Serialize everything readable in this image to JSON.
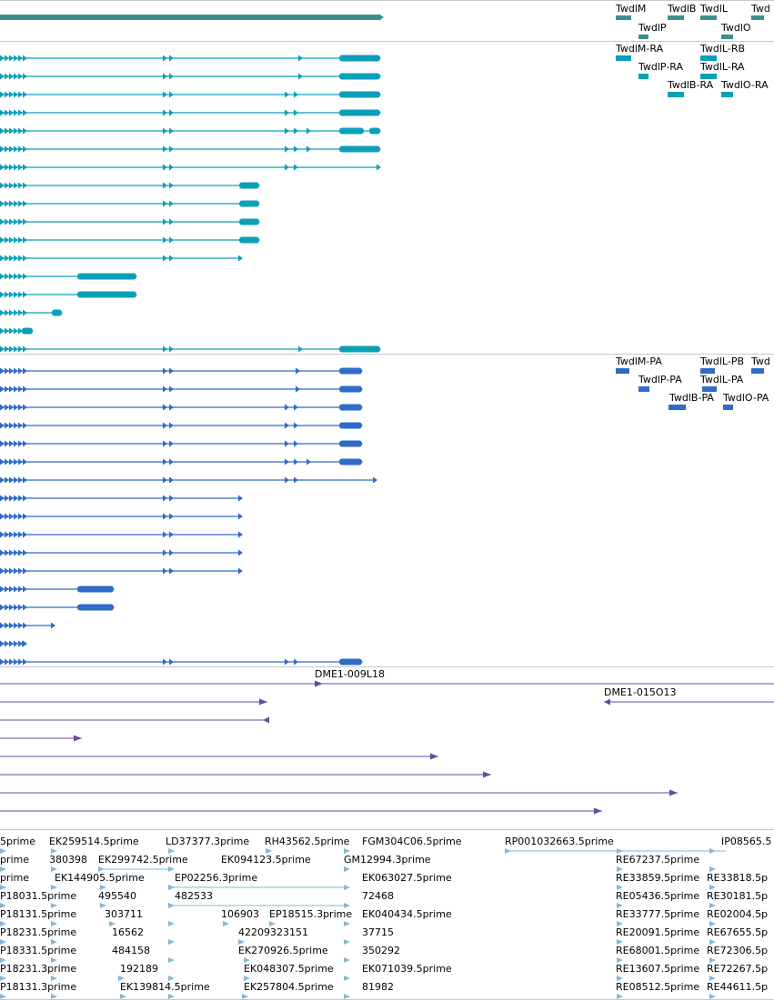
{
  "colors": {
    "gene": "#3b8f8f",
    "mrna": "#0c9fb8",
    "protein": "#2f6bc9",
    "clone": "#6a4aa0",
    "est": "#84b8d8",
    "divider": "#c8c8c8",
    "background": "#ffffff"
  },
  "tracks": {
    "genes": {
      "labels": [
        {
          "id": "g-twdlm",
          "text": "TwdlM"
        },
        {
          "id": "g-twdlb",
          "text": "TwdlB"
        },
        {
          "id": "g-twdll",
          "text": "TwdlL"
        },
        {
          "id": "g-twd-edge",
          "text": "Twd"
        },
        {
          "id": "g-twdlp",
          "text": "TwdlP"
        },
        {
          "id": "g-twdlo",
          "text": "TwdlO"
        }
      ]
    },
    "transcripts": {
      "labels": [
        {
          "id": "t-twdlm-ra",
          "text": "TwdlM-RA"
        },
        {
          "id": "t-twdll-rb",
          "text": "TwdlL-RB"
        },
        {
          "id": "t-twdlp-ra",
          "text": "TwdlP-RA"
        },
        {
          "id": "t-twdll-ra",
          "text": "TwdlL-RA"
        },
        {
          "id": "t-twdlb-ra",
          "text": "TwdlB-RA"
        },
        {
          "id": "t-twdlo-ra",
          "text": "TwdlO-RA"
        }
      ]
    },
    "proteins": {
      "labels": [
        {
          "id": "p-twdlm-pa",
          "text": "TwdlM-PA"
        },
        {
          "id": "p-twdll-pb",
          "text": "TwdlL-PB"
        },
        {
          "id": "p-twd-edge",
          "text": "Twd"
        },
        {
          "id": "p-twdlp-pa",
          "text": "TwdlP-PA"
        },
        {
          "id": "p-twdll-pa",
          "text": "TwdlL-PA"
        },
        {
          "id": "p-twdlb-pa",
          "text": "TwdlB-PA"
        },
        {
          "id": "p-twdlo-pa",
          "text": "TwdlO-PA"
        }
      ]
    },
    "clones": {
      "labels": [
        {
          "id": "c-009l18",
          "text": "DME1-009L18"
        },
        {
          "id": "c-015o13",
          "text": "DME1-015O13"
        }
      ]
    },
    "ests": {
      "labels": [
        {
          "id": "e-r1a",
          "text": "5prime"
        },
        {
          "id": "e-r1b",
          "text": "EK259514.5prime"
        },
        {
          "id": "e-r1c",
          "text": "LD37377.3prime"
        },
        {
          "id": "e-r1d",
          "text": "RH43562.5prime"
        },
        {
          "id": "e-r1e",
          "text": "FGM304C06.5prime"
        },
        {
          "id": "e-r1f",
          "text": "RP001032663.5prime"
        },
        {
          "id": "e-r1g",
          "text": "IP08565.5"
        },
        {
          "id": "e-r2a",
          "text": "prime"
        },
        {
          "id": "e-r2b",
          "text": "380398"
        },
        {
          "id": "e-r2c",
          "text": "EK299742.5prime"
        },
        {
          "id": "e-r2d",
          "text": "EK094123.5prime"
        },
        {
          "id": "e-r2e",
          "text": "GM12994.3prime"
        },
        {
          "id": "e-r2f",
          "text": "RE67237.5prime"
        },
        {
          "id": "e-r3a",
          "text": "prime"
        },
        {
          "id": "e-r3b",
          "text": "EK144905.5prime"
        },
        {
          "id": "e-r3c",
          "text": "EP02256.3prime"
        },
        {
          "id": "e-r3d",
          "text": "EK063027.5prime"
        },
        {
          "id": "e-r3e",
          "text": "RE33859.5prime"
        },
        {
          "id": "e-r3f",
          "text": "RE33818.5p"
        },
        {
          "id": "e-r4a",
          "text": "P18031.5prime"
        },
        {
          "id": "e-r4b",
          "text": "495540"
        },
        {
          "id": "e-r4c",
          "text": "482533"
        },
        {
          "id": "e-r4d",
          "text": "72468"
        },
        {
          "id": "e-r4e",
          "text": "RE05436.5prime"
        },
        {
          "id": "e-r4f",
          "text": "RE30181.5p"
        },
        {
          "id": "e-r5a",
          "text": "P18131.5prime"
        },
        {
          "id": "e-r5b",
          "text": "303711"
        },
        {
          "id": "e-r5c",
          "text": "106903"
        },
        {
          "id": "e-r5d",
          "text": "EP18515.3prime"
        },
        {
          "id": "e-r5e",
          "text": "EK040434.5prime"
        },
        {
          "id": "e-r5f",
          "text": "RE33777.5prime"
        },
        {
          "id": "e-r5g",
          "text": "RE02004.5p"
        },
        {
          "id": "e-r6a",
          "text": "P18231.5prime"
        },
        {
          "id": "e-r6b",
          "text": "16562"
        },
        {
          "id": "e-r6c",
          "text": "42209323151"
        },
        {
          "id": "e-r6d",
          "text": "37715"
        },
        {
          "id": "e-r6e",
          "text": "RE20091.5prime"
        },
        {
          "id": "e-r6f",
          "text": "RE67655.5p"
        },
        {
          "id": "e-r7a",
          "text": "P18331.5prime"
        },
        {
          "id": "e-r7b",
          "text": "484158"
        },
        {
          "id": "e-r7c",
          "text": "EK270926.5prime"
        },
        {
          "id": "e-r7d",
          "text": "350292"
        },
        {
          "id": "e-r7e",
          "text": "RE68001.5prime"
        },
        {
          "id": "e-r7f",
          "text": "RE72306.5p"
        },
        {
          "id": "e-r8a",
          "text": "P18231.3prime"
        },
        {
          "id": "e-r8b",
          "text": "192189"
        },
        {
          "id": "e-r8c",
          "text": "EK048307.5prime"
        },
        {
          "id": "e-r8d",
          "text": "EK071039.5prime"
        },
        {
          "id": "e-r8e",
          "text": "RE13607.5prime"
        },
        {
          "id": "e-r8f",
          "text": "RE72267.5p"
        },
        {
          "id": "e-r9a",
          "text": "P18131.3prime"
        },
        {
          "id": "e-r9b",
          "text": "EK139814.5prime"
        },
        {
          "id": "e-r9c",
          "text": "EK257804.5prime"
        },
        {
          "id": "e-r9d",
          "text": "81982"
        },
        {
          "id": "e-r9e",
          "text": "RE08512.5prime"
        },
        {
          "id": "e-r9f",
          "text": "RE44611.5p"
        }
      ]
    }
  }
}
